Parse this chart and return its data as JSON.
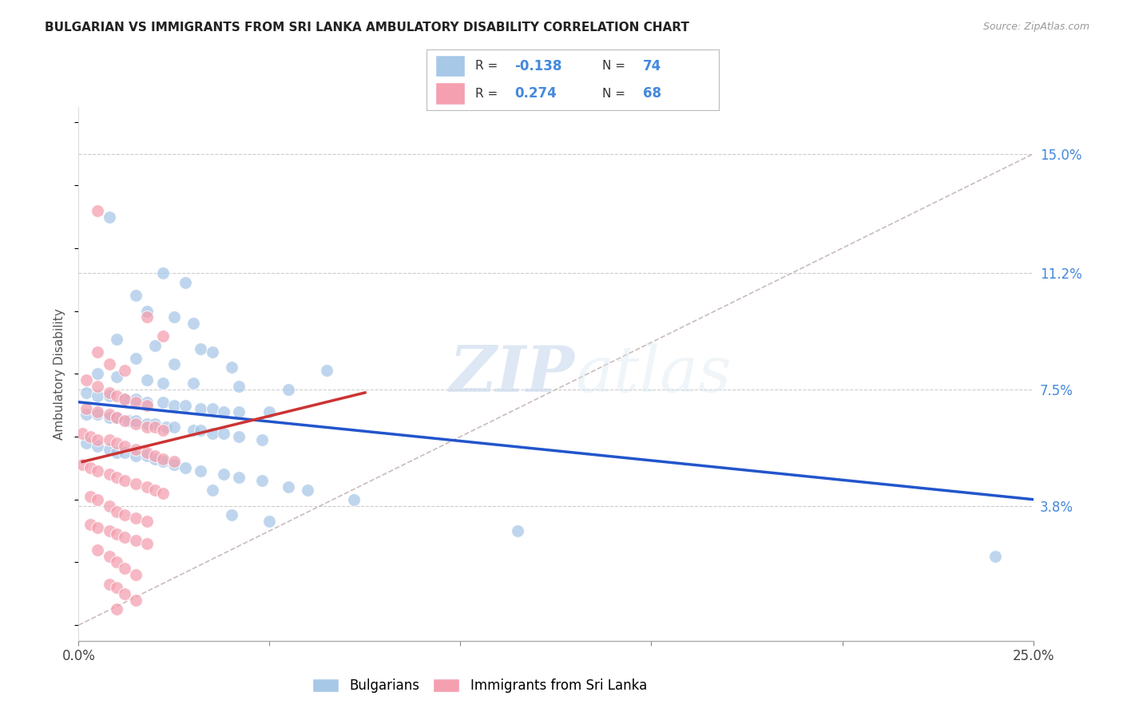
{
  "title": "BULGARIAN VS IMMIGRANTS FROM SRI LANKA AMBULATORY DISABILITY CORRELATION CHART",
  "source": "Source: ZipAtlas.com",
  "ylabel": "Ambulatory Disability",
  "ytick_labels": [
    "3.8%",
    "7.5%",
    "11.2%",
    "15.0%"
  ],
  "ytick_values": [
    0.038,
    0.075,
    0.112,
    0.15
  ],
  "xlim": [
    0.0,
    0.25
  ],
  "ylim": [
    -0.005,
    0.165
  ],
  "blue_color": "#a8c8e8",
  "pink_color": "#f4a0b0",
  "trendline_blue_color": "#2255cc",
  "trendline_pink_color": "#cc3333",
  "trendline_diag_color": "#ccbbbb",
  "watermark_zip": "ZIP",
  "watermark_atlas": "atlas",
  "bulgarians_label": "Bulgarians",
  "immigrants_label": "Immigrants from Sri Lanka",
  "blue_scatter": [
    [
      0.008,
      0.13
    ],
    [
      0.022,
      0.112
    ],
    [
      0.028,
      0.109
    ],
    [
      0.015,
      0.105
    ],
    [
      0.018,
      0.1
    ],
    [
      0.025,
      0.098
    ],
    [
      0.03,
      0.096
    ],
    [
      0.01,
      0.091
    ],
    [
      0.02,
      0.089
    ],
    [
      0.032,
      0.088
    ],
    [
      0.035,
      0.087
    ],
    [
      0.015,
      0.085
    ],
    [
      0.025,
      0.083
    ],
    [
      0.04,
      0.082
    ],
    [
      0.065,
      0.081
    ],
    [
      0.005,
      0.08
    ],
    [
      0.01,
      0.079
    ],
    [
      0.018,
      0.078
    ],
    [
      0.022,
      0.077
    ],
    [
      0.03,
      0.077
    ],
    [
      0.042,
      0.076
    ],
    [
      0.055,
      0.075
    ],
    [
      0.002,
      0.074
    ],
    [
      0.005,
      0.073
    ],
    [
      0.008,
      0.073
    ],
    [
      0.012,
      0.072
    ],
    [
      0.015,
      0.072
    ],
    [
      0.018,
      0.071
    ],
    [
      0.022,
      0.071
    ],
    [
      0.025,
      0.07
    ],
    [
      0.028,
      0.07
    ],
    [
      0.032,
      0.069
    ],
    [
      0.035,
      0.069
    ],
    [
      0.038,
      0.068
    ],
    [
      0.042,
      0.068
    ],
    [
      0.05,
      0.068
    ],
    [
      0.002,
      0.067
    ],
    [
      0.005,
      0.067
    ],
    [
      0.008,
      0.066
    ],
    [
      0.01,
      0.066
    ],
    [
      0.013,
      0.065
    ],
    [
      0.015,
      0.065
    ],
    [
      0.018,
      0.064
    ],
    [
      0.02,
      0.064
    ],
    [
      0.023,
      0.063
    ],
    [
      0.025,
      0.063
    ],
    [
      0.03,
      0.062
    ],
    [
      0.032,
      0.062
    ],
    [
      0.035,
      0.061
    ],
    [
      0.038,
      0.061
    ],
    [
      0.042,
      0.06
    ],
    [
      0.048,
      0.059
    ],
    [
      0.002,
      0.058
    ],
    [
      0.005,
      0.057
    ],
    [
      0.008,
      0.056
    ],
    [
      0.01,
      0.055
    ],
    [
      0.012,
      0.055
    ],
    [
      0.015,
      0.054
    ],
    [
      0.018,
      0.054
    ],
    [
      0.02,
      0.053
    ],
    [
      0.022,
      0.052
    ],
    [
      0.025,
      0.051
    ],
    [
      0.028,
      0.05
    ],
    [
      0.032,
      0.049
    ],
    [
      0.038,
      0.048
    ],
    [
      0.042,
      0.047
    ],
    [
      0.048,
      0.046
    ],
    [
      0.055,
      0.044
    ],
    [
      0.035,
      0.043
    ],
    [
      0.06,
      0.043
    ],
    [
      0.072,
      0.04
    ],
    [
      0.04,
      0.035
    ],
    [
      0.05,
      0.033
    ],
    [
      0.115,
      0.03
    ],
    [
      0.24,
      0.022
    ]
  ],
  "pink_scatter": [
    [
      0.005,
      0.132
    ],
    [
      0.018,
      0.098
    ],
    [
      0.022,
      0.092
    ],
    [
      0.005,
      0.087
    ],
    [
      0.008,
      0.083
    ],
    [
      0.012,
      0.081
    ],
    [
      0.002,
      0.078
    ],
    [
      0.005,
      0.076
    ],
    [
      0.008,
      0.074
    ],
    [
      0.01,
      0.073
    ],
    [
      0.012,
      0.072
    ],
    [
      0.015,
      0.071
    ],
    [
      0.018,
      0.07
    ],
    [
      0.002,
      0.069
    ],
    [
      0.005,
      0.068
    ],
    [
      0.008,
      0.067
    ],
    [
      0.01,
      0.066
    ],
    [
      0.012,
      0.065
    ],
    [
      0.015,
      0.064
    ],
    [
      0.018,
      0.063
    ],
    [
      0.02,
      0.063
    ],
    [
      0.022,
      0.062
    ],
    [
      0.001,
      0.061
    ],
    [
      0.003,
      0.06
    ],
    [
      0.005,
      0.059
    ],
    [
      0.008,
      0.059
    ],
    [
      0.01,
      0.058
    ],
    [
      0.012,
      0.057
    ],
    [
      0.015,
      0.056
    ],
    [
      0.018,
      0.055
    ],
    [
      0.02,
      0.054
    ],
    [
      0.022,
      0.053
    ],
    [
      0.025,
      0.052
    ],
    [
      0.001,
      0.051
    ],
    [
      0.003,
      0.05
    ],
    [
      0.005,
      0.049
    ],
    [
      0.008,
      0.048
    ],
    [
      0.01,
      0.047
    ],
    [
      0.012,
      0.046
    ],
    [
      0.015,
      0.045
    ],
    [
      0.018,
      0.044
    ],
    [
      0.02,
      0.043
    ],
    [
      0.022,
      0.042
    ],
    [
      0.003,
      0.041
    ],
    [
      0.005,
      0.04
    ],
    [
      0.008,
      0.038
    ],
    [
      0.01,
      0.036
    ],
    [
      0.012,
      0.035
    ],
    [
      0.015,
      0.034
    ],
    [
      0.018,
      0.033
    ],
    [
      0.003,
      0.032
    ],
    [
      0.005,
      0.031
    ],
    [
      0.008,
      0.03
    ],
    [
      0.01,
      0.029
    ],
    [
      0.012,
      0.028
    ],
    [
      0.015,
      0.027
    ],
    [
      0.018,
      0.026
    ],
    [
      0.005,
      0.024
    ],
    [
      0.008,
      0.022
    ],
    [
      0.01,
      0.02
    ],
    [
      0.012,
      0.018
    ],
    [
      0.015,
      0.016
    ],
    [
      0.008,
      0.013
    ],
    [
      0.01,
      0.012
    ],
    [
      0.012,
      0.01
    ],
    [
      0.015,
      0.008
    ],
    [
      0.01,
      0.005
    ]
  ],
  "blue_trend_x": [
    0.0,
    0.25
  ],
  "blue_trend_y": [
    0.071,
    0.04
  ],
  "pink_trend_x": [
    0.001,
    0.075
  ],
  "pink_trend_y": [
    0.052,
    0.074
  ],
  "diag_trend_x": [
    0.0,
    0.25
  ],
  "diag_trend_y": [
    0.0,
    0.15
  ]
}
